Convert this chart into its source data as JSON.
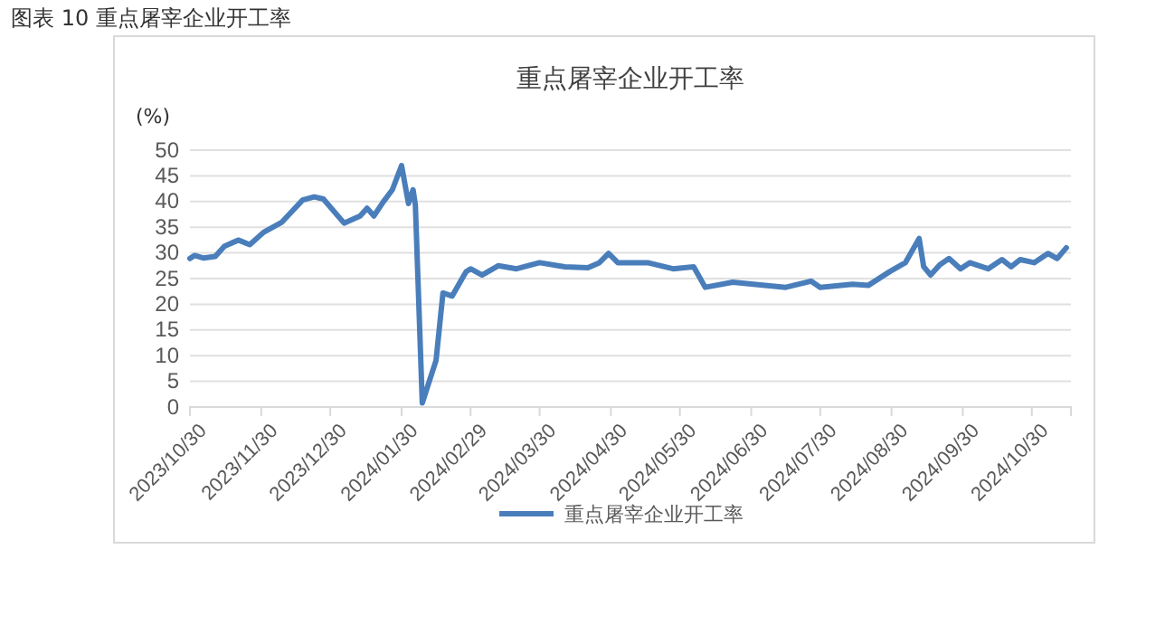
{
  "chart_data": {
    "type": "line",
    "title": "重点屠宰企业开工率",
    "ylabel": "(%)",
    "annotations": [
      "图表 10  重点屠宰企业开工率"
    ],
    "x": [
      "2023-10-30",
      "2023-11-01",
      "2023-11-05",
      "2023-11-10",
      "2023-11-14",
      "2023-11-20",
      "2023-11-25",
      "2023-12-01",
      "2023-12-09",
      "2023-12-18",
      "2023-12-23",
      "2023-12-27",
      "2024-01-05",
      "2024-01-12",
      "2024-01-15",
      "2024-01-18",
      "2024-01-22",
      "2024-01-26",
      "2024-01-30",
      "2024-02-02",
      "2024-02-04",
      "2024-02-05",
      "2024-02-08",
      "2024-02-14",
      "2024-02-17",
      "2024-02-21",
      "2024-02-27",
      "2024-02-29",
      "2024-03-05",
      "2024-03-12",
      "2024-03-20",
      "2024-03-30",
      "2024-04-10",
      "2024-04-20",
      "2024-04-25",
      "2024-04-29",
      "2024-05-03",
      "2024-05-16",
      "2024-05-27",
      "2024-06-05",
      "2024-06-10",
      "2024-06-22",
      "2024-07-15",
      "2024-07-26",
      "2024-07-30",
      "2024-08-13",
      "2024-08-20",
      "2024-08-29",
      "2024-09-05",
      "2024-09-11",
      "2024-09-13",
      "2024-09-16",
      "2024-09-20",
      "2024-09-24",
      "2024-09-29",
      "2024-10-03",
      "2024-10-11",
      "2024-10-17",
      "2024-10-21",
      "2024-10-25",
      "2024-10-31",
      "2024-11-06",
      "2024-11-10",
      "2024-11-14"
    ],
    "series": [
      {
        "name": "重点屠宰企业开工率",
        "color": "#4a7ebb",
        "values": [
          28.9,
          29.5,
          29,
          29.3,
          31.3,
          32.5,
          31.6,
          34,
          36,
          40.3,
          40.9,
          40.5,
          35.8,
          37.2,
          38.7,
          37.2,
          39.9,
          42.3,
          47,
          39.6,
          42.3,
          39.3,
          0.8,
          9.1,
          22.2,
          21.6,
          26.3,
          26.9,
          25.7,
          27.5,
          26.9,
          28.1,
          27.3,
          27.1,
          28.1,
          29.9,
          28.1,
          28.1,
          26.9,
          27.3,
          23.3,
          24.3,
          23.3,
          24.5,
          23.3,
          23.9,
          23.7,
          26.3,
          28.1,
          32.8,
          27.3,
          25.7,
          27.7,
          28.9,
          26.9,
          28.1,
          26.9,
          28.7,
          27.3,
          28.7,
          28.1,
          29.9,
          28.9,
          31
        ]
      }
    ],
    "xlim": [
      "2023-10-30",
      "2024-11-16"
    ],
    "xticks": [
      {
        "value": "2023-10-30",
        "label": "2023/10/30"
      },
      {
        "value": "2023-11-30",
        "label": "2023/11/30"
      },
      {
        "value": "2023-12-30",
        "label": "2023/12/30"
      },
      {
        "value": "2024-01-30",
        "label": "2024/01/30"
      },
      {
        "value": "2024-02-29",
        "label": "2024/02/29"
      },
      {
        "value": "2024-03-30",
        "label": "2024/03/30"
      },
      {
        "value": "2024-04-30",
        "label": "2024/04/30"
      },
      {
        "value": "2024-05-30",
        "label": "2024/05/30"
      },
      {
        "value": "2024-06-30",
        "label": "2024/06/30"
      },
      {
        "value": "2024-07-30",
        "label": "2024/07/30"
      },
      {
        "value": "2024-08-30",
        "label": "2024/08/30"
      },
      {
        "value": "2024-09-30",
        "label": "2024/09/30"
      },
      {
        "value": "2024-10-30",
        "label": "2024/10/30"
      }
    ],
    "ylim": [
      0,
      50
    ],
    "yticks": [
      0,
      5,
      10,
      15,
      20,
      25,
      30,
      35,
      40,
      45,
      50
    ],
    "grid": "y",
    "legend": "bottom",
    "marker": "none",
    "line_style": "solid"
  }
}
